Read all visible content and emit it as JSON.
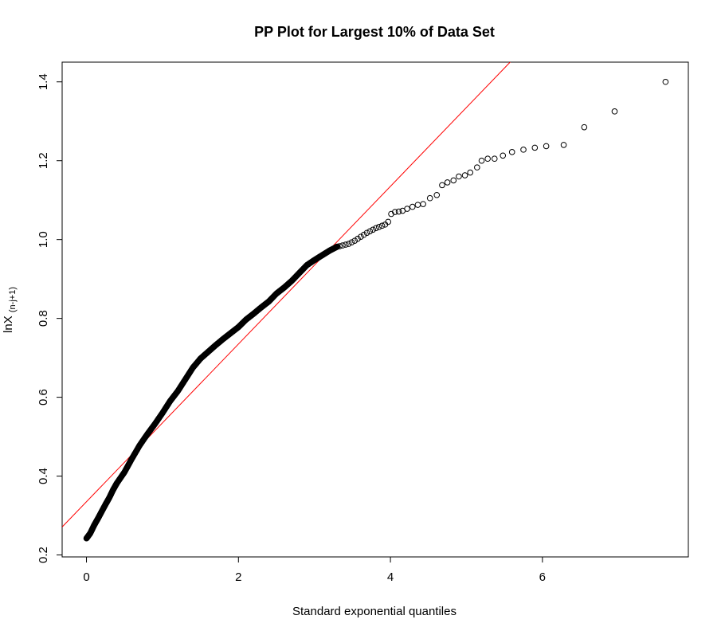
{
  "chart_data": {
    "type": "scatter",
    "title": "PP Plot for Largest 10% of Data Set",
    "xlabel": "Standard exponential quantiles",
    "ylabel": {
      "main": "lnX",
      "subscript": "(n-j+1)"
    },
    "xlim": [
      -0.32,
      7.92
    ],
    "ylim": [
      0.195,
      1.45
    ],
    "x_ticks": [
      0,
      2,
      4,
      6
    ],
    "y_ticks": [
      0.2,
      0.4,
      0.6,
      0.8,
      1.0,
      1.2,
      1.4
    ],
    "x_tick_labels": [
      "0",
      "2",
      "4",
      "6"
    ],
    "y_tick_labels": [
      "0.2",
      "0.4",
      "0.6",
      "0.8",
      "1.0",
      "1.2",
      "1.4"
    ],
    "grid": false,
    "legend": "none",
    "series": [
      {
        "marker": "open-circle",
        "color": "#000000",
        "curve": [
          [
            0.0,
            0.242
          ],
          [
            0.05,
            0.255
          ],
          [
            0.1,
            0.275
          ],
          [
            0.15,
            0.292
          ],
          [
            0.2,
            0.31
          ],
          [
            0.25,
            0.328
          ],
          [
            0.3,
            0.345
          ],
          [
            0.35,
            0.365
          ],
          [
            0.4,
            0.382
          ],
          [
            0.5,
            0.41
          ],
          [
            0.6,
            0.445
          ],
          [
            0.7,
            0.478
          ],
          [
            0.8,
            0.506
          ],
          [
            0.9,
            0.532
          ],
          [
            1.0,
            0.56
          ],
          [
            1.1,
            0.59
          ],
          [
            1.2,
            0.615
          ],
          [
            1.3,
            0.645
          ],
          [
            1.4,
            0.675
          ],
          [
            1.5,
            0.698
          ],
          [
            1.6,
            0.715
          ],
          [
            1.7,
            0.732
          ],
          [
            1.8,
            0.748
          ],
          [
            1.9,
            0.763
          ],
          [
            2.0,
            0.778
          ],
          [
            2.1,
            0.797
          ],
          [
            2.2,
            0.812
          ],
          [
            2.3,
            0.828
          ],
          [
            2.4,
            0.843
          ],
          [
            2.5,
            0.863
          ],
          [
            2.6,
            0.878
          ],
          [
            2.7,
            0.895
          ],
          [
            2.8,
            0.915
          ],
          [
            2.9,
            0.935
          ],
          [
            3.0,
            0.948
          ],
          [
            3.1,
            0.96
          ],
          [
            3.2,
            0.972
          ],
          [
            3.3,
            0.982
          ]
        ],
        "tail_points": [
          [
            3.33,
            0.983
          ],
          [
            3.37,
            0.985
          ],
          [
            3.41,
            0.987
          ],
          [
            3.45,
            0.989
          ],
          [
            3.49,
            0.993
          ],
          [
            3.53,
            0.997
          ],
          [
            3.57,
            1.002
          ],
          [
            3.61,
            1.007
          ],
          [
            3.65,
            1.012
          ],
          [
            3.69,
            1.017
          ],
          [
            3.73,
            1.021
          ],
          [
            3.77,
            1.025
          ],
          [
            3.81,
            1.029
          ],
          [
            3.85,
            1.032
          ],
          [
            3.89,
            1.035
          ],
          [
            3.93,
            1.038
          ],
          [
            3.97,
            1.045
          ],
          [
            4.01,
            1.065
          ],
          [
            4.06,
            1.07
          ],
          [
            4.11,
            1.071
          ],
          [
            4.16,
            1.073
          ],
          [
            4.22,
            1.078
          ],
          [
            4.29,
            1.083
          ],
          [
            4.36,
            1.088
          ],
          [
            4.43,
            1.09
          ],
          [
            4.52,
            1.105
          ],
          [
            4.61,
            1.113
          ],
          [
            4.68,
            1.138
          ],
          [
            4.75,
            1.145
          ],
          [
            4.83,
            1.15
          ],
          [
            4.9,
            1.16
          ],
          [
            4.98,
            1.163
          ],
          [
            5.05,
            1.17
          ],
          [
            5.14,
            1.183
          ],
          [
            5.2,
            1.2
          ],
          [
            5.28,
            1.205
          ],
          [
            5.37,
            1.205
          ],
          [
            5.48,
            1.213
          ],
          [
            5.6,
            1.222
          ],
          [
            5.75,
            1.228
          ],
          [
            5.9,
            1.233
          ],
          [
            6.05,
            1.237
          ],
          [
            6.28,
            1.24
          ],
          [
            6.55,
            1.285
          ],
          [
            6.95,
            1.325
          ],
          [
            7.62,
            1.4
          ]
        ]
      }
    ],
    "reference_line": {
      "color": "#ff0000",
      "intercept": 0.335,
      "slope": 0.2
    }
  }
}
